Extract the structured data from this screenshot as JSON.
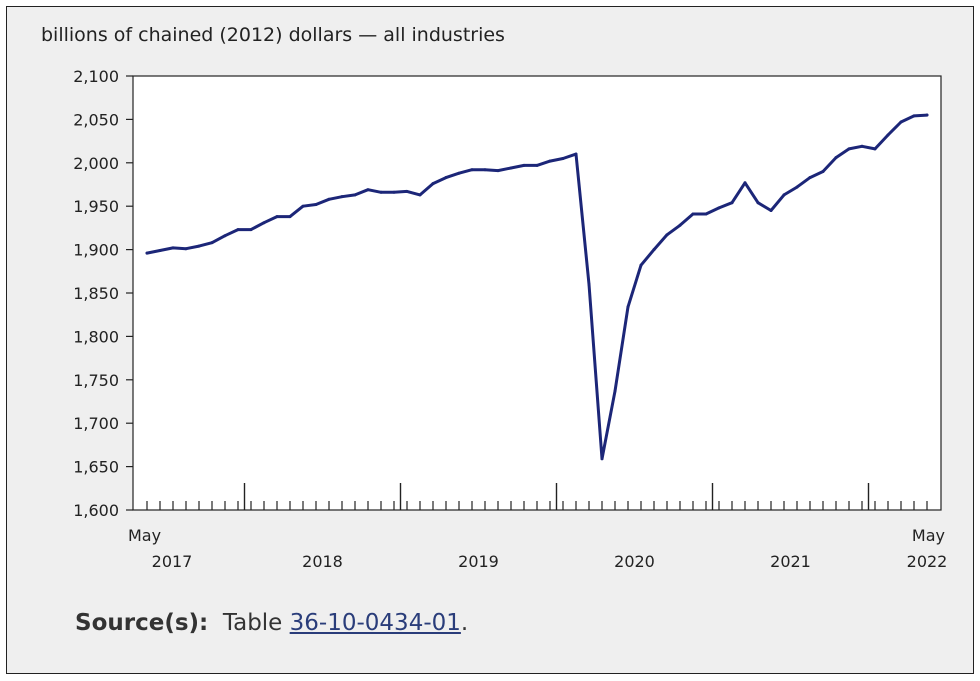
{
  "chart_data": {
    "type": "line",
    "title": "billions of chained (2012) dollars — all industries",
    "ylim": [
      1600,
      2100
    ],
    "yticks": [
      1600,
      1650,
      1700,
      1750,
      1800,
      1850,
      1900,
      1950,
      2000,
      2050,
      2100
    ],
    "ytick_labels": [
      "1,600",
      "1,650",
      "1,700",
      "1,750",
      "1,800",
      "1,850",
      "1,900",
      "1,950",
      "2,000",
      "2,050",
      "2,100"
    ],
    "x_start": "May 2017",
    "x_end": "May 2022",
    "xtick_labels": [
      {
        "month": "May",
        "year": "2017",
        "index": 0
      },
      {
        "month": "",
        "year": "2018",
        "index": 13.5
      },
      {
        "month": "",
        "year": "2019",
        "index": 25.5
      },
      {
        "month": "",
        "year": "2020",
        "index": 37.5
      },
      {
        "month": "",
        "year": "2021",
        "index": 49.5
      },
      {
        "month": "May",
        "year": "2022",
        "index": 60
      }
    ],
    "line_color": "#1c2678",
    "grid": false,
    "series": [
      {
        "values": [
          1896,
          1899,
          1902,
          1901,
          1904,
          1908,
          1916,
          1923,
          1923,
          1931,
          1938,
          1938,
          1950,
          1952,
          1958,
          1961,
          1963,
          1969,
          1966,
          1966,
          1967,
          1963,
          1976,
          1983,
          1988,
          1992,
          1992,
          1991,
          1994,
          1997,
          1997,
          2002,
          2005,
          2010,
          1860,
          1659,
          1737,
          1834,
          1882,
          1900,
          1917,
          1928,
          1941,
          1941,
          1948,
          1954,
          1977,
          1954,
          1945,
          1963,
          1972,
          1983,
          1990,
          2006,
          2016,
          2019,
          2016,
          2032,
          2047,
          2054,
          2055
        ]
      }
    ]
  },
  "source": {
    "label": "Source(s):",
    "prefix": "Table",
    "link": "36-10-0434-01",
    "suffix": "."
  }
}
